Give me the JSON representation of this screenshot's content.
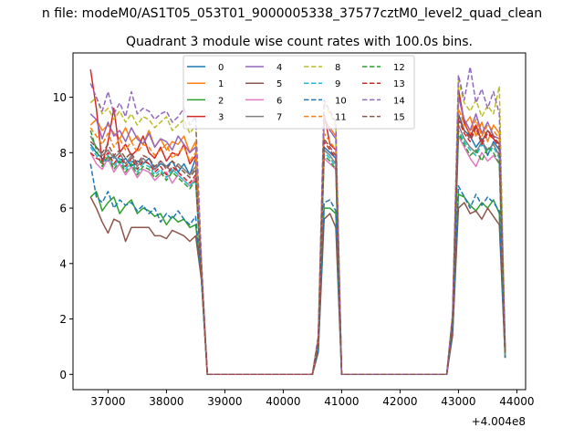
{
  "chart_data": {
    "type": "line",
    "suptitle": "n file: modeM0/AS1T05_053T01_9000005338_37577cztM0_level2_quad_clean",
    "title": "Quadrant 3 module wise count rates with 100.0s bins.",
    "xlabel": "",
    "ylabel": "",
    "offset_label": "+4.004e8",
    "xlim": [
      36400,
      44150
    ],
    "ylim": [
      -0.55,
      11.6
    ],
    "xticks": [
      37000,
      38000,
      39000,
      40000,
      41000,
      42000,
      43000,
      44000
    ],
    "yticks": [
      0,
      2,
      4,
      6,
      8,
      10
    ],
    "grid": false,
    "legend_position": "upper-center",
    "x_segments": [
      [
        36700,
        36800,
        36900,
        37000,
        37100,
        37200,
        37300,
        37400,
        37500,
        37600,
        37700,
        37800,
        37900,
        38000,
        38100,
        38200,
        38300,
        38400,
        38500,
        38600,
        38700
      ],
      [
        40500,
        40600,
        40700,
        40800,
        40900,
        41000
      ],
      [
        42800,
        42900,
        43000,
        43100,
        43200,
        43300,
        43400,
        43500,
        43600,
        43700,
        43800
      ]
    ],
    "zero_gaps": [
      [
        38700,
        40500
      ],
      [
        41000,
        42800
      ]
    ],
    "series": [
      {
        "name": "0",
        "color": "#1f77b4",
        "dash": false,
        "segments": [
          [
            8.3,
            8.0,
            7.8,
            7.7,
            7.9,
            7.6,
            7.8,
            7.5,
            7.7,
            7.6,
            7.8,
            7.4,
            7.6,
            7.5,
            7.7,
            7.3,
            7.6,
            7.2,
            7.8,
            3.5,
            0
          ],
          [
            0,
            1.2,
            8.2,
            8.0,
            7.8,
            0
          ],
          [
            0,
            2.0,
            9.4,
            8.8,
            8.6,
            8.2,
            8.5,
            7.9,
            8.4,
            8.1,
            0.8
          ]
        ]
      },
      {
        "name": "1",
        "color": "#ff7f0e",
        "dash": false,
        "segments": [
          [
            9.0,
            9.2,
            8.8,
            9.0,
            8.7,
            8.5,
            8.9,
            8.4,
            8.6,
            8.3,
            8.8,
            8.2,
            8.5,
            8.1,
            8.4,
            8.3,
            8.6,
            8.0,
            8.4,
            3.8,
            0
          ],
          [
            0,
            1.3,
            9.1,
            8.9,
            8.6,
            0
          ],
          [
            0,
            2.1,
            10.2,
            9.0,
            9.3,
            8.6,
            9.1,
            8.4,
            9.0,
            8.7,
            0.9
          ]
        ]
      },
      {
        "name": "2",
        "color": "#2ca02c",
        "dash": false,
        "segments": [
          [
            6.4,
            6.6,
            5.9,
            6.2,
            6.4,
            5.8,
            6.1,
            6.3,
            5.8,
            6.0,
            5.9,
            5.7,
            5.8,
            5.4,
            5.7,
            5.5,
            5.6,
            5.3,
            5.4,
            3.6,
            0
          ],
          [
            0,
            0.9,
            6.0,
            6.0,
            5.8,
            0
          ],
          [
            0,
            1.6,
            6.5,
            6.4,
            6.1,
            5.9,
            6.2,
            6.0,
            6.3,
            5.8,
            0.6
          ]
        ]
      },
      {
        "name": "3",
        "color": "#d62728",
        "dash": false,
        "segments": [
          [
            11.0,
            9.6,
            7.6,
            8.4,
            9.6,
            8.0,
            8.3,
            7.9,
            8.1,
            8.6,
            8.0,
            7.8,
            8.2,
            7.7,
            8.0,
            7.9,
            8.3,
            7.6,
            7.9,
            3.7,
            0
          ],
          [
            0,
            1.2,
            9.4,
            8.3,
            8.1,
            0
          ],
          [
            0,
            2.0,
            10.3,
            9.1,
            8.6,
            9.0,
            8.4,
            8.8,
            8.5,
            8.3,
            0.8
          ]
        ]
      },
      {
        "name": "4",
        "color": "#9467bd",
        "dash": false,
        "segments": [
          [
            9.4,
            9.2,
            8.5,
            9.1,
            8.6,
            8.8,
            8.4,
            8.9,
            8.5,
            8.3,
            8.7,
            8.2,
            8.5,
            8.4,
            8.1,
            8.6,
            8.3,
            8.0,
            8.2,
            3.9,
            0
          ],
          [
            0,
            1.3,
            9.3,
            8.8,
            8.5,
            0
          ],
          [
            0,
            2.1,
            10.0,
            9.2,
            8.8,
            9.4,
            8.7,
            9.1,
            8.6,
            8.5,
            0.9
          ]
        ]
      },
      {
        "name": "5",
        "color": "#8c564b",
        "dash": false,
        "segments": [
          [
            6.4,
            6.0,
            5.5,
            5.1,
            5.6,
            5.5,
            4.8,
            5.3,
            5.3,
            5.3,
            5.3,
            5.0,
            5.0,
            4.9,
            5.2,
            5.1,
            5.0,
            4.8,
            5.0,
            3.4,
            0
          ],
          [
            0,
            0.8,
            5.6,
            5.8,
            5.3,
            0
          ],
          [
            0,
            1.4,
            6.0,
            6.2,
            5.8,
            5.9,
            5.6,
            6.0,
            5.7,
            5.4,
            0.6
          ]
        ]
      },
      {
        "name": "6",
        "color": "#e377c2",
        "dash": false,
        "segments": [
          [
            8.0,
            7.6,
            7.4,
            7.8,
            7.3,
            7.6,
            7.2,
            7.5,
            7.1,
            7.4,
            7.3,
            7.0,
            7.2,
            7.3,
            6.9,
            7.2,
            7.0,
            6.8,
            7.1,
            3.5,
            0
          ],
          [
            0,
            1.1,
            7.8,
            7.6,
            7.4,
            0
          ],
          [
            0,
            1.9,
            8.6,
            8.2,
            7.8,
            7.5,
            8.0,
            7.7,
            7.9,
            7.6,
            0.7
          ]
        ]
      },
      {
        "name": "7",
        "color": "#7f7f7f",
        "dash": false,
        "segments": [
          [
            8.6,
            8.2,
            7.9,
            8.1,
            7.8,
            8.0,
            7.6,
            7.9,
            7.5,
            7.8,
            7.6,
            7.4,
            7.7,
            7.5,
            7.3,
            7.6,
            7.4,
            7.2,
            7.5,
            3.6,
            0
          ],
          [
            0,
            1.1,
            8.1,
            7.9,
            7.6,
            0
          ],
          [
            0,
            2.0,
            9.0,
            8.5,
            8.2,
            8.0,
            8.4,
            8.1,
            8.3,
            7.9,
            0.8
          ]
        ]
      },
      {
        "name": "8",
        "color": "#bcbd22",
        "dash": true,
        "segments": [
          [
            9.8,
            10.0,
            9.4,
            9.6,
            9.2,
            9.5,
            9.1,
            9.4,
            9.0,
            9.3,
            9.2,
            8.9,
            9.1,
            9.3,
            8.8,
            9.0,
            9.2,
            8.7,
            9.0,
            4.0,
            0
          ],
          [
            0,
            1.4,
            9.8,
            9.4,
            9.0,
            0
          ],
          [
            0,
            2.2,
            10.6,
            9.8,
            9.5,
            9.9,
            9.3,
            9.7,
            9.4,
            10.4,
            1.0
          ]
        ]
      },
      {
        "name": "9",
        "color": "#17becf",
        "dash": true,
        "segments": [
          [
            8.2,
            7.9,
            7.6,
            7.9,
            7.5,
            7.8,
            7.4,
            7.7,
            7.3,
            7.6,
            7.5,
            7.2,
            7.4,
            7.1,
            7.4,
            7.2,
            7.0,
            6.8,
            7.0,
            3.4,
            0
          ],
          [
            0,
            1.1,
            8.0,
            7.8,
            7.5,
            0
          ],
          [
            0,
            1.9,
            8.8,
            8.4,
            8.1,
            7.9,
            8.3,
            8.0,
            8.2,
            7.8,
            0.7
          ]
        ]
      },
      {
        "name": "10",
        "color": "#1f77b4",
        "dash": true,
        "segments": [
          [
            7.6,
            6.4,
            6.2,
            6.6,
            6.0,
            6.3,
            6.1,
            6.2,
            5.9,
            6.1,
            5.8,
            6.0,
            5.5,
            5.8,
            5.6,
            5.9,
            5.6,
            5.4,
            5.7,
            3.4,
            0
          ],
          [
            0,
            0.9,
            6.2,
            6.3,
            5.9,
            0
          ],
          [
            0,
            1.6,
            6.8,
            6.4,
            6.0,
            6.5,
            6.1,
            6.4,
            6.2,
            5.9,
            0.6
          ]
        ]
      },
      {
        "name": "11",
        "color": "#ff7f0e",
        "dash": true,
        "segments": [
          [
            8.9,
            8.6,
            8.3,
            8.7,
            8.2,
            8.5,
            8.1,
            8.4,
            8.0,
            8.3,
            8.2,
            7.9,
            8.1,
            8.3,
            7.8,
            8.0,
            8.2,
            7.7,
            8.0,
            3.8,
            0
          ],
          [
            0,
            1.2,
            8.7,
            8.4,
            8.1,
            0
          ],
          [
            0,
            2.0,
            9.6,
            9.0,
            8.7,
            9.2,
            8.6,
            9.0,
            8.8,
            8.5,
            0.8
          ]
        ]
      },
      {
        "name": "12",
        "color": "#2ca02c",
        "dash": true,
        "segments": [
          [
            8.8,
            8.1,
            7.5,
            7.9,
            7.4,
            7.7,
            7.3,
            7.6,
            7.2,
            7.5,
            7.4,
            7.1,
            7.3,
            7.0,
            7.3,
            7.1,
            6.9,
            6.7,
            7.0,
            3.5,
            0
          ],
          [
            0,
            1.1,
            7.9,
            7.7,
            7.4,
            0
          ],
          [
            0,
            1.9,
            8.7,
            8.3,
            7.9,
            8.1,
            7.7,
            8.2,
            8.0,
            7.6,
            0.7
          ]
        ]
      },
      {
        "name": "13",
        "color": "#d62728",
        "dash": true,
        "segments": [
          [
            8.0,
            7.8,
            7.7,
            8.0,
            7.6,
            7.9,
            7.5,
            7.8,
            7.4,
            7.7,
            7.6,
            7.3,
            7.5,
            7.2,
            7.5,
            7.3,
            7.1,
            6.9,
            7.2,
            3.6,
            0
          ],
          [
            0,
            1.2,
            8.4,
            8.1,
            7.8,
            0
          ],
          [
            0,
            2.0,
            9.2,
            8.7,
            8.4,
            8.9,
            8.3,
            8.7,
            8.5,
            8.2,
            0.8
          ]
        ]
      },
      {
        "name": "14",
        "color": "#9467bd",
        "dash": true,
        "segments": [
          [
            10.5,
            10.0,
            9.5,
            10.2,
            9.4,
            9.8,
            9.3,
            10.2,
            9.4,
            9.6,
            9.5,
            9.2,
            9.4,
            9.5,
            9.1,
            9.3,
            9.6,
            9.0,
            9.3,
            4.1,
            0
          ],
          [
            0,
            1.4,
            9.9,
            9.5,
            9.1,
            0
          ],
          [
            0,
            2.2,
            10.8,
            9.9,
            11.1,
            9.8,
            10.3,
            9.6,
            10.2,
            9.4,
            1.0
          ]
        ]
      },
      {
        "name": "15",
        "color": "#8c564b",
        "dash": true,
        "segments": [
          [
            8.4,
            8.2,
            8.0,
            8.3,
            7.9,
            8.1,
            7.8,
            8.0,
            7.6,
            7.9,
            7.8,
            7.5,
            7.7,
            7.4,
            7.7,
            7.5,
            7.3,
            7.1,
            7.4,
            3.6,
            0
          ],
          [
            0,
            1.2,
            8.5,
            8.2,
            7.9,
            0
          ],
          [
            0,
            2.0,
            9.3,
            8.8,
            8.5,
            8.9,
            8.4,
            8.8,
            8.6,
            8.3,
            0.8
          ]
        ]
      }
    ]
  }
}
